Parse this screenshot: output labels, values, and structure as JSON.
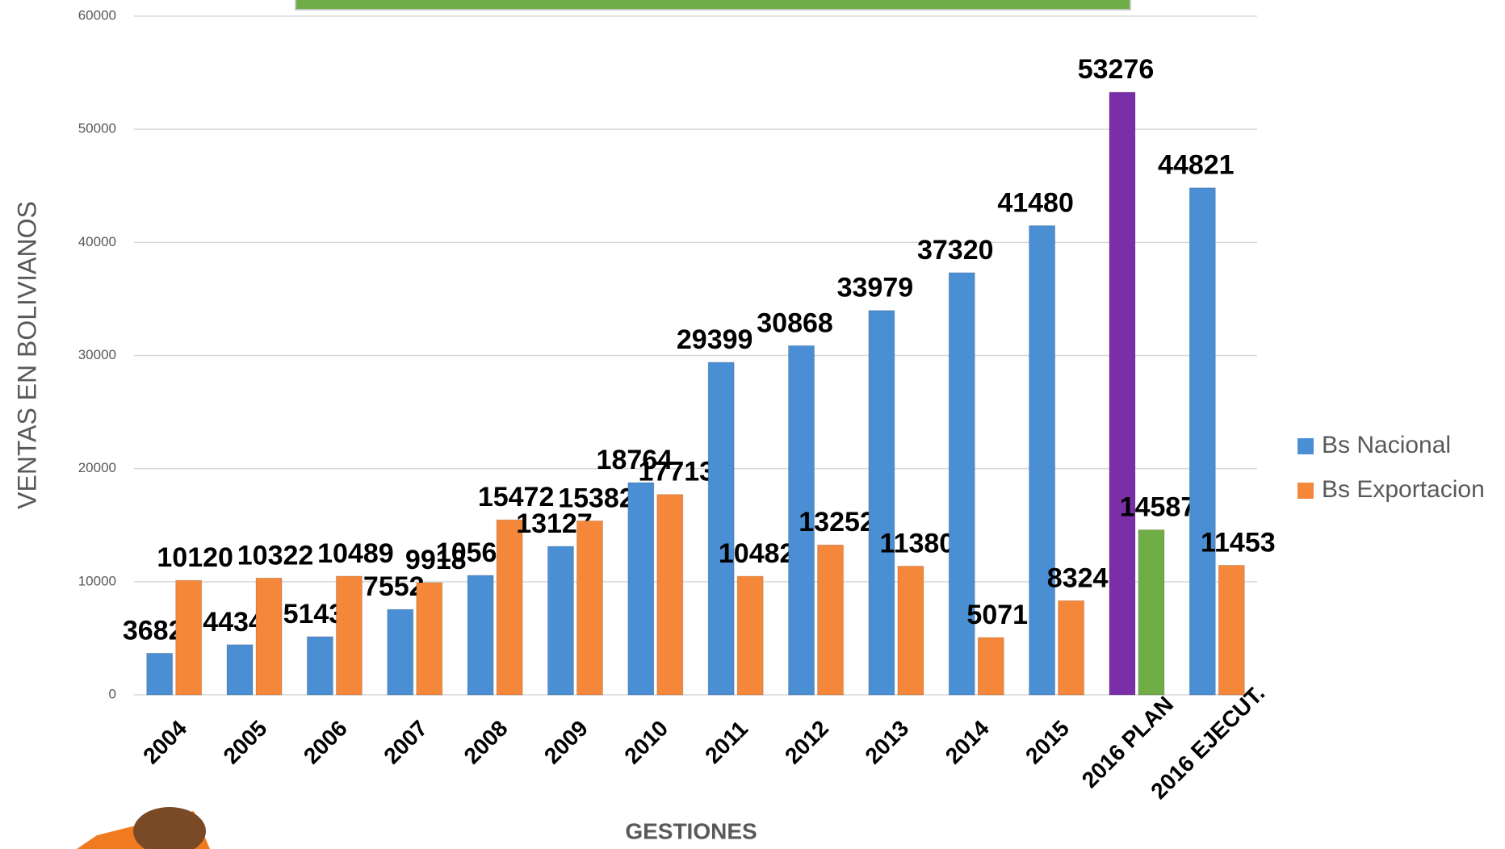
{
  "chart_data": {
    "type": "bar",
    "x_label": "GESTIONES",
    "y_label": "VENTAS EN BOLIVIANOS",
    "categories": [
      "2004",
      "2005",
      "2006",
      "2007",
      "2008",
      "2009",
      "2010",
      "2011",
      "2012",
      "2013",
      "2014",
      "2015",
      "2016 PLAN",
      "2016 EJECUT."
    ],
    "series": [
      {
        "name": "Bs Nacional",
        "color": "#4a8ed4",
        "point_colors": [
          "#4a8ed4",
          "#4a8ed4",
          "#4a8ed4",
          "#4a8ed4",
          "#4a8ed4",
          "#4a8ed4",
          "#4a8ed4",
          "#4a8ed4",
          "#4a8ed4",
          "#4a8ed4",
          "#4a8ed4",
          "#4a8ed4",
          "#7a2fa8",
          "#4a8ed4"
        ],
        "values": [
          3682,
          4434,
          5143,
          7552,
          10565,
          13127,
          18764,
          29399,
          30868,
          33979,
          37320,
          41480,
          53276,
          44821
        ]
      },
      {
        "name": "Bs Exportacion",
        "color": "#f5873a",
        "point_colors": [
          "#f5873a",
          "#f5873a",
          "#f5873a",
          "#f5873a",
          "#f5873a",
          "#f5873a",
          "#f5873a",
          "#f5873a",
          "#f5873a",
          "#f5873a",
          "#f5873a",
          "#f5873a",
          "#70ad47",
          "#f5873a"
        ],
        "values": [
          10120,
          10322,
          10489,
          9918,
          15472,
          15382,
          17713,
          10482,
          13252,
          11380,
          5071,
          8324,
          14587,
          11453
        ]
      }
    ],
    "ylim": [
      0,
      60000
    ],
    "yticks": [
      0,
      10000,
      20000,
      30000,
      40000,
      50000,
      60000
    ],
    "grid": true,
    "legend": "right"
  }
}
